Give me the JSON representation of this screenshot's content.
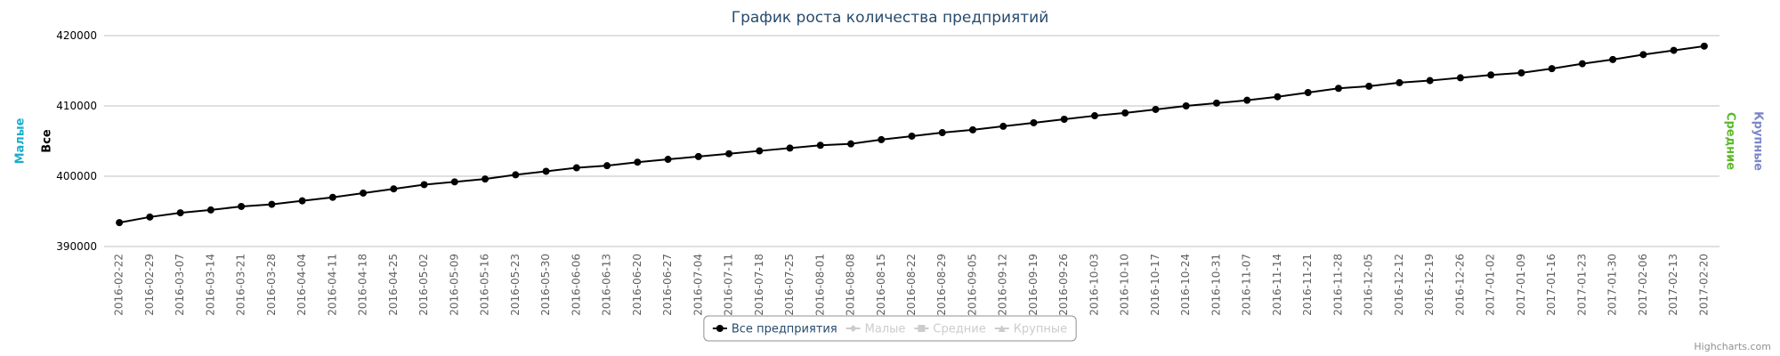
{
  "chart_data": {
    "type": "line",
    "title": "График роста количества предприятий",
    "categories": [
      "2016-02-22",
      "2016-02-29",
      "2016-03-07",
      "2016-03-14",
      "2016-03-21",
      "2016-03-28",
      "2016-04-04",
      "2016-04-11",
      "2016-04-18",
      "2016-04-25",
      "2016-05-02",
      "2016-05-09",
      "2016-05-16",
      "2016-05-23",
      "2016-05-30",
      "2016-06-06",
      "2016-06-13",
      "2016-06-20",
      "2016-06-27",
      "2016-07-04",
      "2016-07-11",
      "2016-07-18",
      "2016-07-25",
      "2016-08-01",
      "2016-08-08",
      "2016-08-15",
      "2016-08-22",
      "2016-08-29",
      "2016-09-05",
      "2016-09-12",
      "2016-09-19",
      "2016-09-26",
      "2016-10-03",
      "2016-10-10",
      "2016-10-17",
      "2016-10-24",
      "2016-10-31",
      "2016-11-07",
      "2016-11-14",
      "2016-11-21",
      "2016-11-28",
      "2016-12-05",
      "2016-12-12",
      "2016-12-19",
      "2016-12-26",
      "2017-01-02",
      "2017-01-09",
      "2017-01-16",
      "2017-01-23",
      "2017-01-30",
      "2017-02-06",
      "2017-02-13",
      "2017-02-20"
    ],
    "series": [
      {
        "name": "Все предприятия",
        "color": "#000000",
        "marker": "circle",
        "visible": true,
        "values": [
          393400,
          394200,
          394800,
          395200,
          395700,
          396000,
          396500,
          397000,
          397600,
          398200,
          398800,
          399200,
          399600,
          400200,
          400700,
          401200,
          401500,
          402000,
          402400,
          402800,
          403200,
          403600,
          404000,
          404400,
          404600,
          405200,
          405700,
          406200,
          406600,
          407100,
          407600,
          408100,
          408600,
          409000,
          409500,
          410000,
          410400,
          410800,
          411300,
          411900,
          412500,
          412800,
          413300,
          413600,
          414000,
          414400,
          414700,
          415300,
          416000,
          416600,
          417300,
          417900,
          418500
        ]
      },
      {
        "name": "Малые",
        "color": "#1aadce",
        "marker": "diamond",
        "visible": false
      },
      {
        "name": "Средние",
        "color": "#5cb82a",
        "marker": "square",
        "visible": false
      },
      {
        "name": "Крупные",
        "color": "#7b86c9",
        "marker": "triangle",
        "visible": false
      }
    ],
    "y_axis_titles": [
      {
        "text": "Малые",
        "color": "#1aadce",
        "side": "left"
      },
      {
        "text": "Все",
        "color": "#000000",
        "side": "left"
      },
      {
        "text": "Средние",
        "color": "#5cb82a",
        "side": "right"
      },
      {
        "text": "Крупные",
        "color": "#7b86c9",
        "side": "right"
      }
    ],
    "ylim": [
      390000,
      420000
    ],
    "yticks": [
      390000,
      400000,
      410000,
      420000
    ],
    "grid": true,
    "legend": "bottom",
    "credits": "Highcharts.com"
  }
}
